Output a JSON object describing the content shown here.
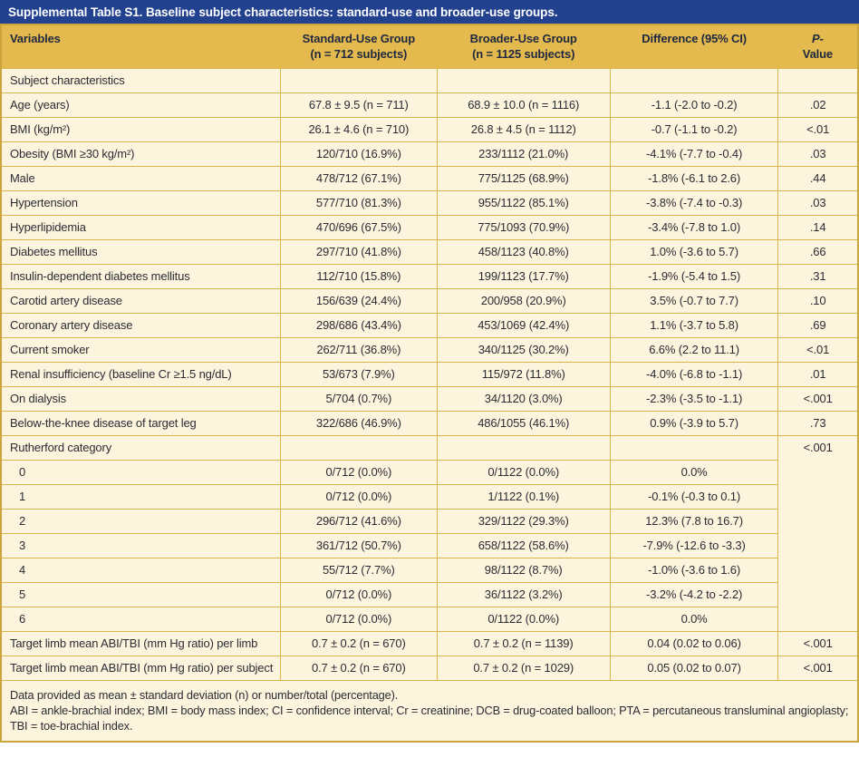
{
  "title": "Supplemental Table S1. Baseline subject characteristics: standard-use and broader-use groups.",
  "colors": {
    "navy_bar": "#22418F",
    "header_gold": "#E4BA4E",
    "body_cream": "#FDF4DE",
    "border_gold": "#D9B54C",
    "text_dark": "#2B2B33",
    "title_text": "#FFFFFF"
  },
  "table": {
    "headers": {
      "variables": "Variables",
      "standard_line1": "Standard-Use Group",
      "standard_line2": "(n = 712 subjects)",
      "broader_line1": "Broader-Use Group",
      "broader_line2": "(n = 1125 subjects)",
      "difference": "Difference (95% CI)",
      "pvalue_line1": "P-",
      "pvalue_line2": "Value"
    },
    "rows": [
      {
        "label": "Subject characteristics",
        "section": true,
        "std": "",
        "broad": "",
        "diff": "",
        "p": ""
      },
      {
        "label": "Age (years)",
        "std": "67.8 ± 9.5 (n = 711)",
        "broad": "68.9 ± 10.0 (n = 1116)",
        "diff": "-1.1 (-2.0 to -0.2)",
        "p": ".02"
      },
      {
        "label": "BMI (kg/m²)",
        "std": "26.1 ± 4.6 (n = 710)",
        "broad": "26.8 ± 4.5 (n = 1112)",
        "diff": "-0.7 (-1.1 to -0.2)",
        "p": "<.01"
      },
      {
        "label": "Obesity (BMI ≥30 kg/m²)",
        "std": "120/710 (16.9%)",
        "broad": "233/1112 (21.0%)",
        "diff": "-4.1% (-7.7 to -0.4)",
        "p": ".03"
      },
      {
        "label": "Male",
        "std": "478/712 (67.1%)",
        "broad": "775/1125 (68.9%)",
        "diff": "-1.8% (-6.1 to 2.6)",
        "p": ".44"
      },
      {
        "label": "Hypertension",
        "std": "577/710 (81.3%)",
        "broad": "955/1122 (85.1%)",
        "diff": "-3.8% (-7.4 to -0.3)",
        "p": ".03"
      },
      {
        "label": "Hyperlipidemia",
        "std": "470/696 (67.5%)",
        "broad": "775/1093 (70.9%)",
        "diff": "-3.4% (-7.8 to 1.0)",
        "p": ".14"
      },
      {
        "label": "Diabetes mellitus",
        "std": "297/710 (41.8%)",
        "broad": "458/1123 (40.8%)",
        "diff": "1.0% (-3.6 to 5.7)",
        "p": ".66"
      },
      {
        "label": "Insulin-dependent diabetes mellitus",
        "std": "112/710 (15.8%)",
        "broad": "199/1123 (17.7%)",
        "diff": "-1.9% (-5.4 to 1.5)",
        "p": ".31"
      },
      {
        "label": "Carotid artery disease",
        "std": "156/639 (24.4%)",
        "broad": "200/958 (20.9%)",
        "diff": "3.5% (-0.7 to 7.7)",
        "p": ".10"
      },
      {
        "label": "Coronary artery disease",
        "std": "298/686 (43.4%)",
        "broad": "453/1069 (42.4%)",
        "diff": "1.1% (-3.7 to 5.8)",
        "p": ".69"
      },
      {
        "label": "Current smoker",
        "std": "262/711 (36.8%)",
        "broad": "340/1125 (30.2%)",
        "diff": "6.6% (2.2 to 11.1)",
        "p": "<.01"
      },
      {
        "label": "Renal insufficiency (baseline Cr ≥1.5 ng/dL)",
        "std": "53/673 (7.9%)",
        "broad": "115/972 (11.8%)",
        "diff": "-4.0% (-6.8 to -1.1)",
        "p": ".01"
      },
      {
        "label": "On dialysis",
        "std": "5/704 (0.7%)",
        "broad": "34/1120 (3.0%)",
        "diff": "-2.3% (-3.5 to -1.1)",
        "p": "<.001"
      },
      {
        "label": "Below-the-knee disease of target leg",
        "std": "322/686 (46.9%)",
        "broad": "486/1055 (46.1%)",
        "diff": "0.9% (-3.9 to 5.7)",
        "p": ".73"
      },
      {
        "label": "Rutherford category",
        "std": "",
        "broad": "",
        "diff": "",
        "p": "<.001",
        "p_rowspan": 8
      },
      {
        "label": "0",
        "indent": true,
        "std": "0/712 (0.0%)",
        "broad": "0/1122 (0.0%)",
        "diff": "0.0%"
      },
      {
        "label": "1",
        "indent": true,
        "std": "0/712 (0.0%)",
        "broad": "1/1122 (0.1%)",
        "diff": "-0.1% (-0.3 to 0.1)"
      },
      {
        "label": "2",
        "indent": true,
        "std": "296/712 (41.6%)",
        "broad": "329/1122 (29.3%)",
        "diff": "12.3% (7.8 to 16.7)"
      },
      {
        "label": "3",
        "indent": true,
        "std": "361/712 (50.7%)",
        "broad": "658/1122 (58.6%)",
        "diff": "-7.9% (-12.6 to -3.3)"
      },
      {
        "label": "4",
        "indent": true,
        "std": "55/712 (7.7%)",
        "broad": "98/1122 (8.7%)",
        "diff": "-1.0% (-3.6 to 1.6)"
      },
      {
        "label": "5",
        "indent": true,
        "std": "0/712 (0.0%)",
        "broad": "36/1122 (3.2%)",
        "diff": "-3.2% (-4.2 to -2.2)"
      },
      {
        "label": "6",
        "indent": true,
        "std": "0/712 (0.0%)",
        "broad": "0/1122 (0.0%)",
        "diff": "0.0%"
      },
      {
        "label": "Target limb mean ABI/TBI (mm Hg ratio) per limb",
        "std": "0.7 ± 0.2 (n = 670)",
        "broad": "0.7 ± 0.2 (n = 1139)",
        "diff": "0.04 (0.02 to 0.06)",
        "p": "<.001"
      },
      {
        "label": "Target limb mean ABI/TBI (mm Hg ratio) per subject",
        "std": "0.7 ± 0.2 (n = 670)",
        "broad": "0.7 ± 0.2 (n = 1029)",
        "diff": "0.05 (0.02 to 0.07)",
        "p": "<.001"
      }
    ],
    "footnotes": [
      "Data provided as mean ± standard deviation (n) or number/total (percentage).",
      "ABI = ankle-brachial index; BMI = body mass index; CI = confidence interval; Cr = creatinine; DCB = drug-coated balloon; PTA = percutaneous transluminal angioplasty; TBI = toe-brachial index."
    ]
  }
}
